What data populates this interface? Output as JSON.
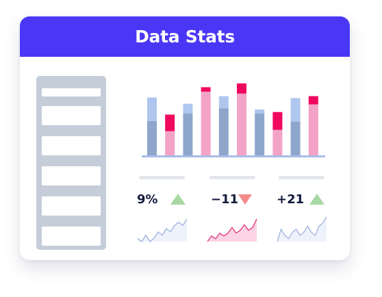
{
  "header": {
    "title": "Data Stats"
  },
  "colors": {
    "header_bg": "#4a37f5",
    "bar_light_blue": "#afc6ee",
    "bar_dark_blue": "#8fa6cc",
    "bar_pink": "#f3a3c6",
    "bar_magenta": "#f0085e",
    "axis": "#a7bde8",
    "up": "#a8d8a2",
    "down": "#f58a8a"
  },
  "chart_data": {
    "type": "bar",
    "stacked": true,
    "categories": [
      "",
      "",
      "",
      "",
      "",
      "",
      "",
      "",
      "",
      ""
    ],
    "series": [
      {
        "values": [
          5.4,
          3.8,
          6.6,
          10.0,
          7.4,
          9.7,
          6.6,
          4.0,
          5.3,
          8.0
        ]
      },
      {
        "values": [
          3.7,
          2.6,
          1.5,
          0.7,
          1.9,
          1.6,
          0.6,
          2.8,
          3.7,
          1.3
        ]
      }
    ],
    "ylim": [
      0,
      11.5
    ],
    "grid": false,
    "legend": "none"
  },
  "stats": [
    {
      "value": "9%",
      "trend": "up",
      "sparkline": [
        4,
        3,
        5,
        3,
        4,
        6,
        5,
        7,
        6,
        8,
        9,
        8,
        10
      ]
    },
    {
      "value": "−11",
      "trend": "down",
      "sparkline": [
        3,
        5,
        4,
        6,
        5,
        6,
        8,
        6,
        7,
        9,
        7,
        8,
        11
      ]
    },
    {
      "value": "+21",
      "trend": "up",
      "sparkline": [
        2,
        6,
        4,
        3,
        5,
        6,
        4,
        5,
        7,
        5,
        4,
        7,
        8,
        10
      ]
    }
  ]
}
